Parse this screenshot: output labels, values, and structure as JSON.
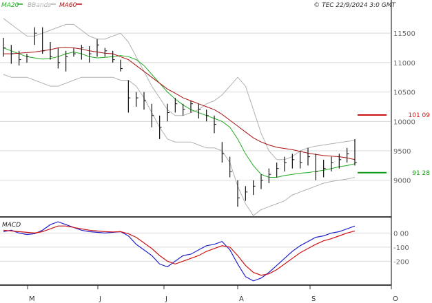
{
  "colors": {
    "ma20": "#22aa22",
    "bbands": "#b0b0b0",
    "ma60": "#aa1111",
    "macd": "#2222cc",
    "signal": "#cc1111",
    "bars": "#111111",
    "grid": "#d8d8d8"
  },
  "legend": {
    "ma20": "MA20",
    "bbands": "BBands",
    "ma60": "MA60"
  },
  "copyright": "© TEC 22/9/2024 3:0 GMT",
  "macd_title": "MACD",
  "chart_data": [
    {
      "type": "line",
      "panel": "price",
      "x_labels": [
        "M",
        "J",
        "J",
        "A",
        "S",
        "O"
      ],
      "y_ticks": [
        9000,
        9500,
        10000,
        10500,
        11000,
        11500
      ],
      "y_tick_labels": [
        "9000",
        "9500",
        "10000",
        "10500",
        "11000",
        "11500"
      ],
      "ylim": [
        8400,
        11900
      ],
      "price_labels": [
        {
          "value": 10109,
          "text": "101 09",
          "color": "#cc1111"
        },
        {
          "value": 9128,
          "text": "91 28",
          "color": "#119911"
        }
      ],
      "series": [
        {
          "name": "MA20",
          "values": [
            11250,
            11200,
            11150,
            11100,
            11080,
            11060,
            11070,
            11100,
            11150,
            11180,
            11150,
            11100,
            11080,
            11090,
            11100,
            11120,
            11100,
            11050,
            10950,
            10800,
            10650,
            10500,
            10380,
            10280,
            10200,
            10150,
            10100,
            10050,
            10000,
            9900,
            9700,
            9450,
            9250,
            9100,
            9050,
            9050,
            9080,
            9100,
            9120,
            9130,
            9150,
            9170,
            9200,
            9230,
            9250,
            9280
          ]
        },
        {
          "name": "MA60",
          "values": [
            11150,
            11150,
            11160,
            11170,
            11180,
            11200,
            11220,
            11250,
            11260,
            11250,
            11230,
            11200,
            11180,
            11160,
            11150,
            11100,
            11050,
            10950,
            10850,
            10750,
            10650,
            10550,
            10480,
            10400,
            10350,
            10300,
            10250,
            10200,
            10120,
            10020,
            9920,
            9820,
            9720,
            9650,
            9600,
            9560,
            9540,
            9520,
            9490,
            9460,
            9440,
            9420,
            9410,
            9400,
            9380,
            9350
          ]
        },
        {
          "name": "BBands",
          "values": [
            11750,
            11650,
            11550,
            11450,
            11450,
            11500,
            11550,
            11600,
            11650,
            11650,
            11550,
            11450,
            11400,
            11400,
            11450,
            11500,
            11350,
            11100,
            10850,
            10600,
            10400,
            10200,
            10100,
            10100,
            10150,
            10200,
            10300,
            10350,
            10450,
            10600,
            10750,
            10600,
            10200,
            9800,
            9500,
            9350,
            9350,
            9400,
            9500,
            9550,
            9580,
            9600,
            9620,
            9640,
            9660,
            9680
          ]
        },
        {
          "name": "BBands",
          "values": [
            10800,
            10750,
            10750,
            10750,
            10700,
            10650,
            10600,
            10600,
            10650,
            10700,
            10750,
            10750,
            10750,
            10750,
            10750,
            10700,
            10700,
            10600,
            10400,
            10150,
            9900,
            9700,
            9650,
            9650,
            9650,
            9600,
            9550,
            9550,
            9500,
            9300,
            8900,
            8600,
            8400,
            8500,
            8550,
            8600,
            8650,
            8750,
            8800,
            8850,
            8900,
            8950,
            8980,
            9000,
            9020,
            9050
          ]
        }
      ],
      "bars": [
        [
          11420,
          11100,
          11250
        ],
        [
          11300,
          10980,
          11150
        ],
        [
          11200,
          10950,
          11050
        ],
        [
          11150,
          11000,
          11100
        ],
        [
          11600,
          11300,
          11500
        ],
        [
          11600,
          11150,
          11200
        ],
        [
          11350,
          11050,
          11100
        ],
        [
          11250,
          10900,
          11000
        ],
        [
          11200,
          10850,
          11100
        ],
        [
          11250,
          11100,
          11150
        ],
        [
          11300,
          11050,
          11250
        ],
        [
          11280,
          11000,
          11150
        ],
        [
          11400,
          11100,
          11300
        ],
        [
          11250,
          11100,
          11200
        ],
        [
          11200,
          11000,
          11050
        ],
        [
          11050,
          10850,
          10900
        ],
        [
          10700,
          10150,
          10400
        ],
        [
          10500,
          10250,
          10400
        ],
        [
          10500,
          10200,
          10350
        ],
        [
          10300,
          9900,
          10100
        ],
        [
          10100,
          9700,
          9900
        ],
        [
          10300,
          10000,
          10150
        ],
        [
          10400,
          10150,
          10300
        ],
        [
          10300,
          10100,
          10200
        ],
        [
          10350,
          10150,
          10300
        ],
        [
          10300,
          10050,
          10200
        ],
        [
          10200,
          10000,
          10100
        ],
        [
          10100,
          9800,
          9950
        ],
        [
          9650,
          9300,
          9450
        ],
        [
          9400,
          9050,
          9150
        ],
        [
          9000,
          8550,
          8700
        ],
        [
          8900,
          8650,
          8800
        ],
        [
          9000,
          8750,
          8900
        ],
        [
          9100,
          8850,
          9000
        ],
        [
          9200,
          8950,
          9100
        ],
        [
          9300,
          9050,
          9200
        ],
        [
          9400,
          9150,
          9300
        ],
        [
          9450,
          9200,
          9350
        ],
        [
          9500,
          9200,
          9300
        ],
        [
          9550,
          9250,
          9400
        ],
        [
          9450,
          9000,
          9150
        ],
        [
          9350,
          9050,
          9200
        ],
        [
          9400,
          9150,
          9300
        ],
        [
          9450,
          9200,
          9350
        ],
        [
          9550,
          9300,
          9450
        ],
        [
          9700,
          9250,
          9300
        ]
      ]
    },
    {
      "type": "line",
      "panel": "macd",
      "y_ticks": [
        0,
        -100,
        -200
      ],
      "y_tick_labels": [
        "0 00",
        "-100",
        "-200"
      ],
      "ylim": [
        -370,
        100
      ],
      "series": [
        {
          "name": "MACD",
          "values": [
            10,
            20,
            0,
            -10,
            -5,
            20,
            60,
            80,
            60,
            40,
            20,
            10,
            5,
            0,
            5,
            10,
            -20,
            -80,
            -120,
            -160,
            -220,
            -240,
            -200,
            -160,
            -150,
            -120,
            -90,
            -80,
            -60,
            -120,
            -220,
            -310,
            -340,
            -320,
            -280,
            -230,
            -180,
            -130,
            -90,
            -60,
            -30,
            -20,
            0,
            10,
            30,
            50
          ]
        },
        {
          "name": "Signal",
          "values": [
            20,
            15,
            10,
            5,
            0,
            10,
            30,
            50,
            50,
            40,
            30,
            20,
            15,
            10,
            8,
            10,
            -5,
            -30,
            -70,
            -110,
            -160,
            -200,
            -220,
            -200,
            -180,
            -160,
            -130,
            -110,
            -90,
            -100,
            -160,
            -230,
            -280,
            -300,
            -290,
            -260,
            -220,
            -180,
            -140,
            -110,
            -80,
            -55,
            -40,
            -20,
            0,
            15
          ]
        }
      ]
    }
  ]
}
